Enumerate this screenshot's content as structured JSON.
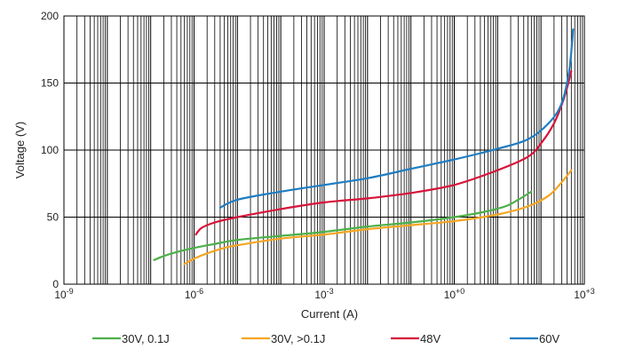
{
  "chart_data": {
    "type": "line",
    "title": "",
    "xlabel": "Current (A)",
    "ylabel": "Voltage (V)",
    "x_scale": "log",
    "xlim": [
      1e-09,
      1000
    ],
    "ylim": [
      0,
      200
    ],
    "x_ticks": [
      {
        "base": "10",
        "exp": "-9"
      },
      {
        "base": "10",
        "exp": "-6"
      },
      {
        "base": "10",
        "exp": "-3"
      },
      {
        "base": "10",
        "exp": "+0"
      },
      {
        "base": "10",
        "exp": "+3"
      }
    ],
    "x_tick_values": [
      1e-09,
      1e-06,
      0.001,
      1,
      1000
    ],
    "y_ticks": [
      0,
      50,
      100,
      150,
      200
    ],
    "grid": true,
    "legend_position": "bottom",
    "series": [
      {
        "name": "30V, 0.1J",
        "color": "#4db04a",
        "points": [
          [
            1.2e-07,
            18
          ],
          [
            2e-07,
            21
          ],
          [
            4e-07,
            24
          ],
          [
            1e-06,
            27
          ],
          [
            3e-06,
            30
          ],
          [
            1e-05,
            33
          ],
          [
            0.0001,
            36
          ],
          [
            0.001,
            39
          ],
          [
            0.01,
            43
          ],
          [
            0.1,
            46
          ],
          [
            1,
            50
          ],
          [
            5,
            54
          ],
          [
            15,
            58
          ],
          [
            30,
            63
          ],
          [
            60,
            69
          ]
        ]
      },
      {
        "name": "30V, >0.1J",
        "color": "#f5a623",
        "points": [
          [
            6e-07,
            15
          ],
          [
            1e-06,
            19
          ],
          [
            2e-06,
            23
          ],
          [
            5e-06,
            27
          ],
          [
            1e-05,
            29
          ],
          [
            0.0001,
            34
          ],
          [
            0.001,
            37
          ],
          [
            0.01,
            41
          ],
          [
            0.1,
            44
          ],
          [
            1,
            47
          ],
          [
            10,
            52
          ],
          [
            50,
            58
          ],
          [
            150,
            66
          ],
          [
            300,
            76
          ],
          [
            500,
            85
          ]
        ]
      },
      {
        "name": "48V",
        "color": "#d7143a",
        "points": [
          [
            1.1e-06,
            37
          ],
          [
            1.5e-06,
            42
          ],
          [
            3e-06,
            46
          ],
          [
            1e-05,
            50
          ],
          [
            0.0001,
            56
          ],
          [
            0.001,
            61
          ],
          [
            0.01,
            64
          ],
          [
            0.1,
            68
          ],
          [
            1,
            74
          ],
          [
            10,
            85
          ],
          [
            50,
            95
          ],
          [
            100,
            105
          ],
          [
            200,
            120
          ],
          [
            350,
            140
          ],
          [
            500,
            159
          ]
        ]
      },
      {
        "name": "60V",
        "color": "#1f7dc2",
        "points": [
          [
            4e-06,
            57
          ],
          [
            1e-05,
            63
          ],
          [
            0.0001,
            69
          ],
          [
            0.001,
            74
          ],
          [
            0.01,
            79
          ],
          [
            0.1,
            86
          ],
          [
            1,
            93
          ],
          [
            10,
            101
          ],
          [
            50,
            108
          ],
          [
            150,
            120
          ],
          [
            300,
            135
          ],
          [
            450,
            160
          ],
          [
            550,
            190
          ]
        ]
      }
    ]
  }
}
